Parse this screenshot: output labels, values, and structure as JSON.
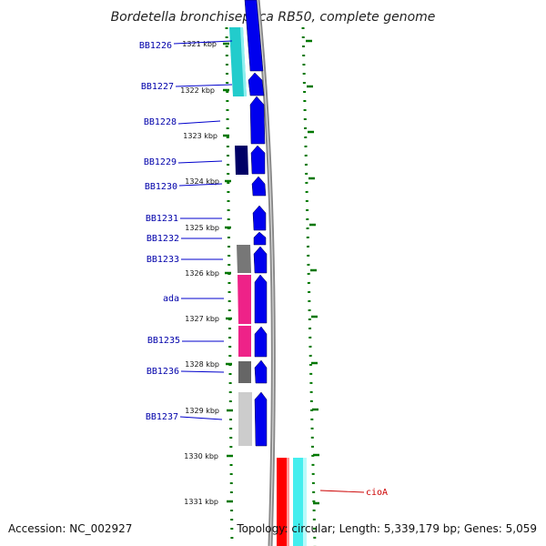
{
  "title": "Bordetella bronchiseptica RB50, complete genome",
  "footer": {
    "accession": "Accession: NC_002927",
    "topology": "Topology: circular; Length: 5,339,179 bp; Genes: 5,059"
  },
  "colors": {
    "plus_strand": "#0000ee",
    "label_blue": "#0000aa",
    "label_red": "#cc0000",
    "tick_green": "#007700",
    "backbone": "#888888",
    "cyan": "#22cccc",
    "navy": "#000066",
    "grey": "#777777",
    "magenta": "#ee2288",
    "light_grey": "#cccccc",
    "red": "#ff0000",
    "light_cyan": "#44eeee"
  },
  "scale": {
    "unit": "kbp",
    "ticks": [
      "1321 kbp",
      "1322 kbp",
      "1323 kbp",
      "1324 kbp",
      "1325 kbp",
      "1326 kbp",
      "1327 kbp",
      "1328 kbp",
      "1329 kbp",
      "1330 kbp",
      "1331 kbp"
    ]
  },
  "genes": [
    {
      "label": "BB1226",
      "strand": "+"
    },
    {
      "label": "BB1227",
      "strand": "+"
    },
    {
      "label": "BB1228",
      "strand": "+"
    },
    {
      "label": "BB1229",
      "strand": "+"
    },
    {
      "label": "BB1230",
      "strand": "+"
    },
    {
      "label": "BB1231",
      "strand": "+"
    },
    {
      "label": "BB1232",
      "strand": "+"
    },
    {
      "label": "BB1233",
      "strand": "+"
    },
    {
      "label": "ada",
      "strand": "+"
    },
    {
      "label": "BB1235",
      "strand": "+"
    },
    {
      "label": "BB1236",
      "strand": "+"
    },
    {
      "label": "BB1237",
      "strand": "+"
    },
    {
      "label": "cioA",
      "strand": "-"
    }
  ]
}
